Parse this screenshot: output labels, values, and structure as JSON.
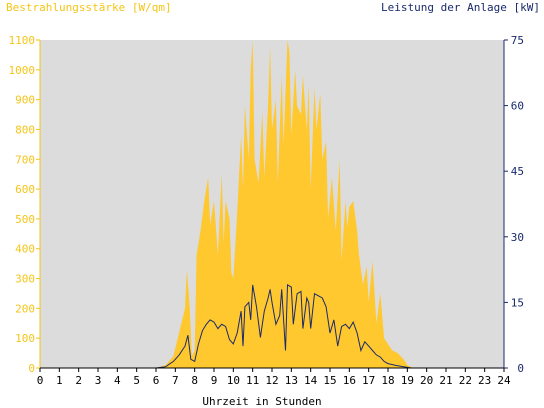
{
  "chart_data": {
    "type": "area",
    "title_left": "Bestrahlungsstärke [W/qm]",
    "title_right": "Leistung der Anlage [kW]",
    "xlabel": "Uhrzeit in Stunden",
    "xlim": [
      0,
      24
    ],
    "x_ticks": [
      "0",
      "1",
      "2",
      "3",
      "4",
      "5",
      "6",
      "7",
      "8",
      "9",
      "10",
      "11",
      "12",
      "13",
      "14",
      "15",
      "16",
      "17",
      "18",
      "19",
      "20",
      "21",
      "22",
      "23",
      "24"
    ],
    "y_left": {
      "range": [
        0,
        1100
      ],
      "ticks": [
        "0",
        "100",
        "200",
        "300",
        "400",
        "500",
        "600",
        "700",
        "800",
        "900",
        "1000",
        "1100"
      ]
    },
    "y_right": {
      "range": [
        0,
        75
      ],
      "ticks": [
        "0",
        "15",
        "30",
        "45",
        "60",
        "75"
      ]
    },
    "colors": {
      "irradiance": "#ffc82e",
      "power": "#1a2a6c",
      "plot_bg": "#dcdcdc",
      "left_axis": "#f5c518",
      "right_axis": "#1a2a6c"
    },
    "series": [
      {
        "name": "Bestrahlungsstärke",
        "axis": "left",
        "style": "area",
        "points": [
          [
            6.0,
            0
          ],
          [
            6.5,
            10
          ],
          [
            6.9,
            40
          ],
          [
            7.2,
            120
          ],
          [
            7.5,
            200
          ],
          [
            7.6,
            330
          ],
          [
            7.75,
            200
          ],
          [
            7.85,
            40
          ],
          [
            8.0,
            60
          ],
          [
            8.1,
            380
          ],
          [
            8.3,
            460
          ],
          [
            8.5,
            560
          ],
          [
            8.7,
            640
          ],
          [
            8.8,
            480
          ],
          [
            9.0,
            560
          ],
          [
            9.2,
            380
          ],
          [
            9.4,
            650
          ],
          [
            9.5,
            420
          ],
          [
            9.6,
            560
          ],
          [
            9.8,
            500
          ],
          [
            9.9,
            320
          ],
          [
            10.0,
            300
          ],
          [
            10.2,
            520
          ],
          [
            10.4,
            780
          ],
          [
            10.5,
            600
          ],
          [
            10.6,
            880
          ],
          [
            10.8,
            700
          ],
          [
            10.9,
            1000
          ],
          [
            11.0,
            1100
          ],
          [
            11.1,
            700
          ],
          [
            11.3,
            620
          ],
          [
            11.5,
            860
          ],
          [
            11.6,
            640
          ],
          [
            11.8,
            880
          ],
          [
            11.9,
            1080
          ],
          [
            12.0,
            800
          ],
          [
            12.2,
            900
          ],
          [
            12.3,
            620
          ],
          [
            12.5,
            980
          ],
          [
            12.6,
            750
          ],
          [
            12.8,
            1100
          ],
          [
            12.9,
            1060
          ],
          [
            13.0,
            780
          ],
          [
            13.2,
            1000
          ],
          [
            13.3,
            880
          ],
          [
            13.5,
            850
          ],
          [
            13.6,
            980
          ],
          [
            13.8,
            800
          ],
          [
            13.9,
            950
          ],
          [
            14.0,
            600
          ],
          [
            14.2,
            940
          ],
          [
            14.3,
            800
          ],
          [
            14.5,
            920
          ],
          [
            14.6,
            700
          ],
          [
            14.8,
            760
          ],
          [
            14.9,
            500
          ],
          [
            15.1,
            640
          ],
          [
            15.3,
            460
          ],
          [
            15.5,
            700
          ],
          [
            15.6,
            360
          ],
          [
            15.8,
            560
          ],
          [
            15.9,
            470
          ],
          [
            16.0,
            540
          ],
          [
            16.2,
            560
          ],
          [
            16.4,
            460
          ],
          [
            16.5,
            380
          ],
          [
            16.7,
            280
          ],
          [
            16.9,
            340
          ],
          [
            17.0,
            220
          ],
          [
            17.2,
            360
          ],
          [
            17.4,
            150
          ],
          [
            17.6,
            250
          ],
          [
            17.8,
            100
          ],
          [
            18.0,
            80
          ],
          [
            18.2,
            60
          ],
          [
            18.5,
            50
          ],
          [
            18.8,
            30
          ],
          [
            19.0,
            10
          ],
          [
            19.3,
            0
          ]
        ]
      },
      {
        "name": "Leistung der Anlage",
        "axis": "right",
        "style": "line",
        "points": [
          [
            0,
            0
          ],
          [
            6.0,
            0
          ],
          [
            6.5,
            0.3
          ],
          [
            6.9,
            1.5
          ],
          [
            7.2,
            3.0
          ],
          [
            7.5,
            5.0
          ],
          [
            7.65,
            7.5
          ],
          [
            7.8,
            2.0
          ],
          [
            8.0,
            1.5
          ],
          [
            8.2,
            5.5
          ],
          [
            8.4,
            8.5
          ],
          [
            8.6,
            10.0
          ],
          [
            8.8,
            11.0
          ],
          [
            9.0,
            10.5
          ],
          [
            9.2,
            9.0
          ],
          [
            9.4,
            10.0
          ],
          [
            9.6,
            9.5
          ],
          [
            9.8,
            6.5
          ],
          [
            10.0,
            5.5
          ],
          [
            10.2,
            8.0
          ],
          [
            10.4,
            13.0
          ],
          [
            10.5,
            5.0
          ],
          [
            10.6,
            14.0
          ],
          [
            10.8,
            15.0
          ],
          [
            10.9,
            11.0
          ],
          [
            11.0,
            19.0
          ],
          [
            11.2,
            14.0
          ],
          [
            11.4,
            7.0
          ],
          [
            11.6,
            13.0
          ],
          [
            11.8,
            16.0
          ],
          [
            11.9,
            18.0
          ],
          [
            12.0,
            15.0
          ],
          [
            12.2,
            10.0
          ],
          [
            12.4,
            12.0
          ],
          [
            12.5,
            18.0
          ],
          [
            12.7,
            4.0
          ],
          [
            12.8,
            19.0
          ],
          [
            13.0,
            18.5
          ],
          [
            13.1,
            10.0
          ],
          [
            13.3,
            17.0
          ],
          [
            13.5,
            17.5
          ],
          [
            13.6,
            9.0
          ],
          [
            13.8,
            16.0
          ],
          [
            13.9,
            15.0
          ],
          [
            14.0,
            9.0
          ],
          [
            14.2,
            17.0
          ],
          [
            14.4,
            16.5
          ],
          [
            14.6,
            16.0
          ],
          [
            14.8,
            14.0
          ],
          [
            15.0,
            8.0
          ],
          [
            15.2,
            11.0
          ],
          [
            15.4,
            5.0
          ],
          [
            15.6,
            9.5
          ],
          [
            15.8,
            10.0
          ],
          [
            16.0,
            9.0
          ],
          [
            16.2,
            10.5
          ],
          [
            16.4,
            8.0
          ],
          [
            16.6,
            4.0
          ],
          [
            16.8,
            6.0
          ],
          [
            17.0,
            5.0
          ],
          [
            17.2,
            4.0
          ],
          [
            17.4,
            3.0
          ],
          [
            17.6,
            2.5
          ],
          [
            17.8,
            1.5
          ],
          [
            18.0,
            1.0
          ],
          [
            18.4,
            0.6
          ],
          [
            18.8,
            0.3
          ],
          [
            19.2,
            0
          ],
          [
            24,
            0
          ]
        ]
      }
    ]
  }
}
